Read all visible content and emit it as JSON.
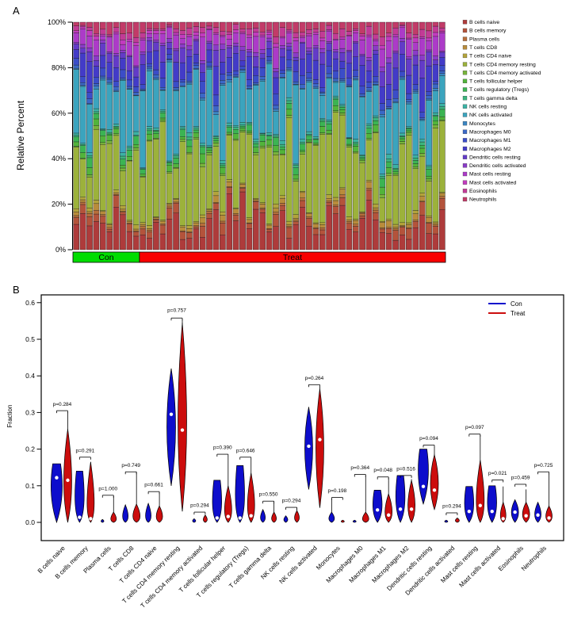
{
  "chart_data": [
    {
      "type": "bar",
      "subtype": "stacked-percent",
      "panel_label": "A",
      "ylabel": "Relative Percent",
      "yticks": [
        "0%",
        "20%",
        "40%",
        "60%",
        "80%",
        "100%"
      ],
      "ylim": [
        0,
        100
      ],
      "legend_position": "right",
      "grid": false,
      "sample_groups": [
        {
          "label": "Con",
          "color": "#00DD00",
          "n": 10
        },
        {
          "label": "Treat",
          "color": "#F80000",
          "n": 46
        }
      ],
      "seed": 11,
      "series": [
        {
          "name": "B cells naive",
          "color": "#AE3B3B",
          "mean_fraction": 0.115
        },
        {
          "name": "B cells memory",
          "color": "#B4533B",
          "mean_fraction": 0.03
        },
        {
          "name": "Plasma cells",
          "color": "#B76E3B",
          "mean_fraction": 0.008
        },
        {
          "name": "T cells CD8",
          "color": "#B98C3B",
          "mean_fraction": 0.015
        },
        {
          "name": "T cells CD4 naive",
          "color": "#B3A43B",
          "mean_fraction": 0.01
        },
        {
          "name": "T cells CD4 memory resting",
          "color": "#9CB23B",
          "mean_fraction": 0.27
        },
        {
          "name": "T cells CD4 memory activated",
          "color": "#78B43B",
          "mean_fraction": 0.008
        },
        {
          "name": "T cells follicular helper",
          "color": "#52B43B",
          "mean_fraction": 0.02
        },
        {
          "name": "T cells regulatory (Tregs)",
          "color": "#3BB453",
          "mean_fraction": 0.02
        },
        {
          "name": "T cells gamma delta",
          "color": "#3BB47E",
          "mean_fraction": 0.008
        },
        {
          "name": "NK cells resting",
          "color": "#3BB2A4",
          "mean_fraction": 0.01
        },
        {
          "name": "NK cells activated",
          "color": "#3BA4BE",
          "mean_fraction": 0.2
        },
        {
          "name": "Monocytes",
          "color": "#3B86C2",
          "mean_fraction": 0.006
        },
        {
          "name": "Macrophages M0",
          "color": "#3B68C6",
          "mean_fraction": 0.012
        },
        {
          "name": "Macrophages M1",
          "color": "#3B4DC8",
          "mean_fraction": 0.025
        },
        {
          "name": "Macrophages M2",
          "color": "#433BC8",
          "mean_fraction": 0.075
        },
        {
          "name": "Dendritic cells resting",
          "color": "#633BC8",
          "mean_fraction": 0.045
        },
        {
          "name": "Dendritic cells activated",
          "color": "#8A3BC8",
          "mean_fraction": 0.012
        },
        {
          "name": "Mast cells resting",
          "color": "#AC3BC8",
          "mean_fraction": 0.05
        },
        {
          "name": "Mast cells activated",
          "color": "#C23BBE",
          "mean_fraction": 0.012
        },
        {
          "name": "Eosinophils",
          "color": "#C23B96",
          "mean_fraction": 0.02
        },
        {
          "name": "Neutrophils",
          "color": "#C23B68",
          "mean_fraction": 0.035
        }
      ]
    },
    {
      "type": "violin",
      "panel_label": "B",
      "ylabel": "Fraction",
      "yticks": [
        "0.0",
        "0.1",
        "0.2",
        "0.3",
        "0.4",
        "0.5",
        "0.6"
      ],
      "ylim": [
        0,
        0.6
      ],
      "grid": false,
      "legend_position": "top-right",
      "legend": [
        {
          "label": "Con",
          "color": "#0D0DCC"
        },
        {
          "label": "Treat",
          "color": "#CC0D0D"
        }
      ],
      "violins": [
        {
          "name": "B cells naive",
          "p": "p=0.284",
          "p_y": 0.318,
          "bracket_y": 0.305,
          "con": {
            "lo": 0,
            "hi": 0.16,
            "med": 0.122,
            "whisker": 0.16,
            "bulge": 0.45,
            "w": 5.5,
            "flat": true
          },
          "treat": {
            "lo": 0,
            "hi": 0.255,
            "med": 0.115,
            "whisker": 0.3,
            "bulge": 0.38,
            "w": 5,
            "flat": false
          }
        },
        {
          "name": "B cells memory",
          "p": "p=0.291",
          "p_y": 0.192,
          "bracket_y": 0.178,
          "con": {
            "lo": 0,
            "hi": 0.14,
            "med": 0.014,
            "whisker": 0.14,
            "bulge": 0.22,
            "w": 4.5,
            "flat": true
          },
          "treat": {
            "lo": 0,
            "hi": 0.165,
            "med": 0.01,
            "whisker": 0.165,
            "bulge": 0.16,
            "w": 4.5,
            "flat": false
          }
        },
        {
          "name": "Plasma cells",
          "p": "p=1.000",
          "p_y": 0.088,
          "bracket_y": 0.074,
          "con": {
            "lo": 0,
            "hi": 0.008,
            "med": null,
            "whisker": 0.008,
            "bulge": 0.3,
            "w": 1.8,
            "flat": false
          },
          "treat": {
            "lo": 0,
            "hi": 0.028,
            "med": null,
            "whisker": 0.072,
            "bulge": 0.2,
            "w": 3.5,
            "flat": false
          }
        },
        {
          "name": "T cells CD8",
          "p": "p=0.749",
          "p_y": 0.152,
          "bracket_y": 0.138,
          "con": {
            "lo": 0,
            "hi": 0.048,
            "med": null,
            "whisker": 0.048,
            "bulge": 0.22,
            "w": 3.5,
            "flat": false
          },
          "treat": {
            "lo": 0,
            "hi": 0.05,
            "med": null,
            "whisker": 0.137,
            "bulge": 0.2,
            "w": 4.5,
            "flat": false
          }
        },
        {
          "name": "T cells CD4 naive",
          "p": "p=0.661",
          "p_y": 0.098,
          "bracket_y": 0.084,
          "con": {
            "lo": 0,
            "hi": 0.052,
            "med": null,
            "whisker": 0.052,
            "bulge": 0.2,
            "w": 3.5,
            "flat": false
          },
          "treat": {
            "lo": 0,
            "hi": 0.045,
            "med": null,
            "whisker": 0.082,
            "bulge": 0.22,
            "w": 4,
            "flat": false
          }
        },
        {
          "name": "T cells CD4 memory resting",
          "p": "p=0.757",
          "p_y": 0.575,
          "bracket_y": 0.558,
          "con": {
            "lo": 0.1,
            "hi": 0.42,
            "med": 0.295,
            "whisker": 0.42,
            "bulge": 0.5,
            "w": 5.5,
            "flat": false
          },
          "treat": {
            "lo": 0.03,
            "hi": 0.545,
            "med": 0.252,
            "whisker": 0.555,
            "bulge": 0.45,
            "w": 5.5,
            "flat": false
          }
        },
        {
          "name": "T cells CD4 memory activated",
          "p": "p=0.294",
          "p_y": 0.042,
          "bracket_y": 0.028,
          "con": {
            "lo": 0,
            "hi": 0.01,
            "med": null,
            "whisker": 0.01,
            "bulge": 0.3,
            "w": 2,
            "flat": false
          },
          "treat": {
            "lo": 0,
            "hi": 0.02,
            "med": null,
            "whisker": 0.02,
            "bulge": 0.25,
            "w": 2.5,
            "flat": false
          }
        },
        {
          "name": "T cells follicular helper",
          "p": "p=0.390",
          "p_y": 0.2,
          "bracket_y": 0.186,
          "con": {
            "lo": 0,
            "hi": 0.115,
            "med": 0.012,
            "whisker": 0.115,
            "bulge": 0.2,
            "w": 4.5,
            "flat": true
          },
          "treat": {
            "lo": 0,
            "hi": 0.1,
            "med": 0.016,
            "whisker": 0.18,
            "bulge": 0.2,
            "w": 4.5,
            "flat": false
          }
        },
        {
          "name": "T cells regulatory (Tregs)",
          "p": "p=0.646",
          "p_y": 0.192,
          "bracket_y": 0.178,
          "con": {
            "lo": 0,
            "hi": 0.155,
            "med": 0.012,
            "whisker": 0.155,
            "bulge": 0.18,
            "w": 4.5,
            "flat": true
          },
          "treat": {
            "lo": 0,
            "hi": 0.135,
            "med": 0.018,
            "whisker": 0.172,
            "bulge": 0.2,
            "w": 4.5,
            "flat": false
          }
        },
        {
          "name": "T cells gamma delta",
          "p": "p=0.550",
          "p_y": 0.072,
          "bracket_y": 0.058,
          "con": {
            "lo": 0,
            "hi": 0.035,
            "med": null,
            "whisker": 0.035,
            "bulge": 0.25,
            "w": 3,
            "flat": false
          },
          "treat": {
            "lo": 0,
            "hi": 0.028,
            "med": null,
            "whisker": 0.055,
            "bulge": 0.25,
            "w": 3,
            "flat": false
          }
        },
        {
          "name": "NK cells resting",
          "p": "p=0.294",
          "p_y": 0.055,
          "bracket_y": 0.041,
          "con": {
            "lo": 0,
            "hi": 0.018,
            "med": null,
            "whisker": 0.018,
            "bulge": 0.3,
            "w": 2.5,
            "flat": false
          },
          "treat": {
            "lo": 0,
            "hi": 0.032,
            "med": null,
            "whisker": 0.038,
            "bulge": 0.3,
            "w": 3,
            "flat": false
          }
        },
        {
          "name": "NK cells activated",
          "p": "p=0.264",
          "p_y": 0.39,
          "bracket_y": 0.376,
          "con": {
            "lo": 0.09,
            "hi": 0.315,
            "med": 0.208,
            "whisker": 0.315,
            "bulge": 0.5,
            "w": 5,
            "flat": false
          },
          "treat": {
            "lo": 0.04,
            "hi": 0.365,
            "med": 0.226,
            "whisker": 0.37,
            "bulge": 0.5,
            "w": 5,
            "flat": false
          }
        },
        {
          "name": "Monocytes",
          "p": "p=0.198",
          "p_y": 0.082,
          "bracket_y": 0.068,
          "con": {
            "lo": 0,
            "hi": 0.028,
            "med": null,
            "whisker": 0.065,
            "bulge": 0.25,
            "w": 3.5,
            "flat": false
          },
          "treat": {
            "lo": 0,
            "hi": 0.006,
            "med": null,
            "whisker": 0.006,
            "bulge": 0.3,
            "w": 2,
            "flat": false
          }
        },
        {
          "name": "Macrophages M0",
          "p": "p=0.364",
          "p_y": 0.145,
          "bracket_y": 0.131,
          "con": {
            "lo": 0,
            "hi": 0.006,
            "med": null,
            "whisker": 0.006,
            "bulge": 0.3,
            "w": 2,
            "flat": false
          },
          "treat": {
            "lo": 0,
            "hi": 0.028,
            "med": null,
            "whisker": 0.128,
            "bulge": 0.2,
            "w": 4,
            "flat": false
          }
        },
        {
          "name": "Macrophages M1",
          "p": "p=0.048",
          "p_y": 0.138,
          "bracket_y": 0.124,
          "con": {
            "lo": 0,
            "hi": 0.088,
            "med": 0.034,
            "whisker": 0.088,
            "bulge": 0.3,
            "w": 4.5,
            "flat": true
          },
          "treat": {
            "lo": 0,
            "hi": 0.078,
            "med": 0.02,
            "whisker": 0.122,
            "bulge": 0.25,
            "w": 4.5,
            "flat": false
          }
        },
        {
          "name": "Macrophages M2",
          "p": "p=0.516",
          "p_y": 0.142,
          "bracket_y": 0.128,
          "con": {
            "lo": 0,
            "hi": 0.128,
            "med": 0.036,
            "whisker": 0.128,
            "bulge": 0.3,
            "w": 4.5,
            "flat": true
          },
          "treat": {
            "lo": 0,
            "hi": 0.115,
            "med": 0.036,
            "whisker": 0.118,
            "bulge": 0.3,
            "w": 4.5,
            "flat": false
          }
        },
        {
          "name": "Dendritic cells resting",
          "p": "p=0.094",
          "p_y": 0.225,
          "bracket_y": 0.211,
          "con": {
            "lo": 0.05,
            "hi": 0.2,
            "med": 0.098,
            "whisker": 0.2,
            "bulge": 0.45,
            "w": 5,
            "flat": true
          },
          "treat": {
            "lo": 0.035,
            "hi": 0.185,
            "med": 0.088,
            "whisker": 0.205,
            "bulge": 0.45,
            "w": 5,
            "flat": false
          }
        },
        {
          "name": "Dendritic cells activated",
          "p": "p=0.294",
          "p_y": 0.04,
          "bracket_y": 0.026,
          "con": {
            "lo": 0,
            "hi": 0.006,
            "med": null,
            "whisker": 0.006,
            "bulge": 0.3,
            "w": 2,
            "flat": false
          },
          "treat": {
            "lo": 0,
            "hi": 0.012,
            "med": null,
            "whisker": 0.012,
            "bulge": 0.3,
            "w": 2.5,
            "flat": false
          }
        },
        {
          "name": "Mast cells resting",
          "p": "p=0.097",
          "p_y": 0.255,
          "bracket_y": 0.241,
          "con": {
            "lo": 0,
            "hi": 0.098,
            "med": 0.03,
            "whisker": 0.098,
            "bulge": 0.28,
            "w": 4.5,
            "flat": true
          },
          "treat": {
            "lo": 0,
            "hi": 0.17,
            "med": 0.046,
            "whisker": 0.238,
            "bulge": 0.22,
            "w": 5,
            "flat": false
          }
        },
        {
          "name": "Mast cells activated",
          "p": "p=0.021",
          "p_y": 0.13,
          "bracket_y": 0.116,
          "con": {
            "lo": 0,
            "hi": 0.1,
            "med": 0.03,
            "whisker": 0.1,
            "bulge": 0.3,
            "w": 4.5,
            "flat": true
          },
          "treat": {
            "lo": 0,
            "hi": 0.055,
            "med": 0.01,
            "whisker": 0.098,
            "bulge": 0.2,
            "w": 3.5,
            "flat": false
          }
        },
        {
          "name": "Eosinophils",
          "p": "p=0.459",
          "p_y": 0.118,
          "bracket_y": 0.104,
          "con": {
            "lo": 0,
            "hi": 0.062,
            "med": 0.028,
            "whisker": 0.062,
            "bulge": 0.38,
            "w": 4.5,
            "flat": false
          },
          "treat": {
            "lo": 0,
            "hi": 0.055,
            "med": 0.018,
            "whisker": 0.09,
            "bulge": 0.3,
            "w": 4.5,
            "flat": false
          }
        },
        {
          "name": "Neutrophils",
          "p": "p=0.725",
          "p_y": 0.152,
          "bracket_y": 0.138,
          "con": {
            "lo": 0,
            "hi": 0.055,
            "med": 0.02,
            "whisker": 0.055,
            "bulge": 0.3,
            "w": 4,
            "flat": false
          },
          "treat": {
            "lo": 0,
            "hi": 0.045,
            "med": 0.012,
            "whisker": 0.133,
            "bulge": 0.25,
            "w": 4,
            "flat": false
          }
        }
      ]
    }
  ]
}
